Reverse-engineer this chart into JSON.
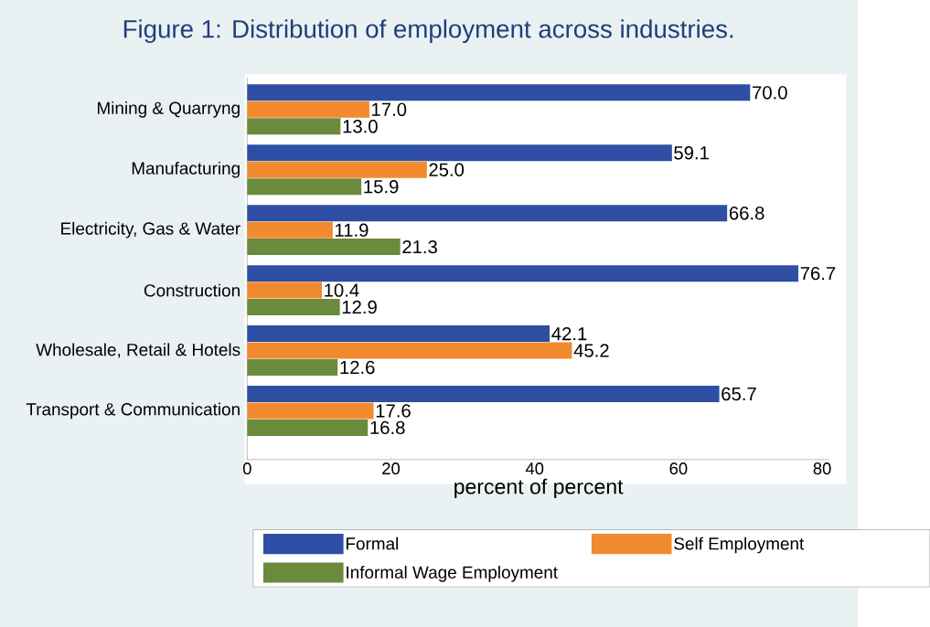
{
  "chart_data": {
    "type": "bar",
    "orientation": "horizontal",
    "title": "Figure 1: Distribution of employment across industries.",
    "xlabel": "percent of percent",
    "categories": [
      "Mining & Quarryng",
      "Manufacturing",
      "Electricity, Gas & Water",
      "Construction",
      "Wholesale, Retail & Hotels",
      "Transport & Communication"
    ],
    "series": [
      {
        "name": "Formal",
        "color": "#2e4fa3",
        "values": [
          70.0,
          59.1,
          66.8,
          76.7,
          42.1,
          65.7
        ],
        "value_labels": [
          "70.0",
          "59.1",
          "66.8",
          "76.7",
          "42.1",
          "65.7"
        ]
      },
      {
        "name": "Self Employment",
        "color": "#f28a30",
        "values": [
          17.0,
          25.0,
          11.9,
          10.4,
          45.2,
          17.6
        ],
        "value_labels": [
          "17.0",
          "25.0",
          "11.9",
          "10.4",
          "45.2",
          "17.6"
        ]
      },
      {
        "name": "Informal Wage Employment",
        "color": "#6a8a3c",
        "values": [
          13.0,
          15.9,
          21.3,
          12.9,
          12.6,
          16.8
        ],
        "value_labels": [
          "13.0",
          "15.9",
          "21.3",
          "12.9",
          "12.6",
          "16.8"
        ]
      }
    ],
    "xlim": [
      0,
      81
    ],
    "xticks": [
      0,
      20,
      40,
      60,
      80
    ],
    "grid": false,
    "legend": "bottom"
  }
}
